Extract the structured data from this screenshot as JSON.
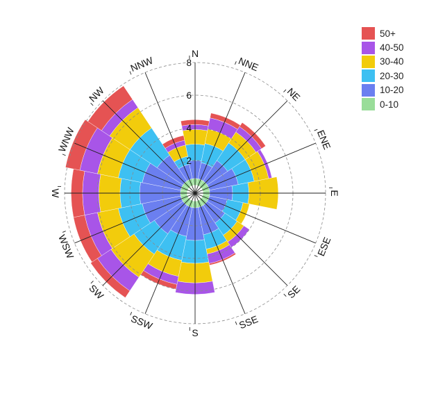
{
  "chart_data": {
    "type": "windrose",
    "directions": [
      "N",
      "NNE",
      "NE",
      "ENE",
      "E",
      "ESE",
      "SE",
      "SSE",
      "S",
      "SSW",
      "SW",
      "WSW",
      "W",
      "WNW",
      "NW",
      "NNW"
    ],
    "radial_ticks": [
      "2",
      "4",
      "6",
      "8"
    ],
    "radial_max": 8,
    "series": [
      {
        "name": "0-10",
        "color": "#99dd99",
        "values": [
          0.9,
          0.9,
          0.9,
          0.9,
          0.9,
          0.9,
          0.9,
          0.9,
          0.9,
          0.9,
          0.9,
          0.9,
          0.9,
          0.9,
          0.9,
          0.9
        ]
      },
      {
        "name": "10-20",
        "color": "#6b7ff0",
        "values": [
          1.1,
          1.0,
          1.5,
          1.8,
          1.4,
          1.1,
          1.3,
          1.7,
          2.0,
          1.8,
          2.1,
          2.4,
          2.5,
          2.4,
          1.9,
          0.9
        ]
      },
      {
        "name": "20-30",
        "color": "#3ec0f2",
        "values": [
          1.0,
          1.2,
          1.3,
          1.0,
          1.0,
          1.0,
          0.9,
          0.9,
          1.4,
          1.5,
          1.5,
          1.5,
          1.2,
          1.5,
          2.0,
          0.5
        ]
      },
      {
        "name": "30-40",
        "color": "#f2cc0c",
        "values": [
          0.9,
          0.9,
          0.8,
          0.9,
          1.8,
          0.4,
          0.5,
          0.3,
          1.2,
          1.0,
          1.7,
          1.3,
          1.3,
          1.3,
          1.5,
          0.7
        ]
      },
      {
        "name": "40-50",
        "color": "#a855e8",
        "values": [
          0.3,
          0.7,
          0.4,
          0.2,
          0.0,
          0.0,
          0.4,
          0.6,
          0.7,
          0.5,
          1.0,
          0.8,
          1.0,
          1.1,
          0.6,
          0.3
        ]
      },
      {
        "name": "50+",
        "color": "#e55353",
        "values": [
          0.3,
          0.3,
          0.3,
          0.0,
          0.0,
          0.0,
          0.0,
          0.1,
          0.0,
          0.3,
          0.5,
          0.7,
          0.7,
          0.9,
          1.0,
          0.3
        ]
      }
    ],
    "legend_order": [
      "50+",
      "40-50",
      "30-40",
      "20-30",
      "10-20",
      "0-10"
    ],
    "legend_position": "top-right",
    "grid": true
  }
}
